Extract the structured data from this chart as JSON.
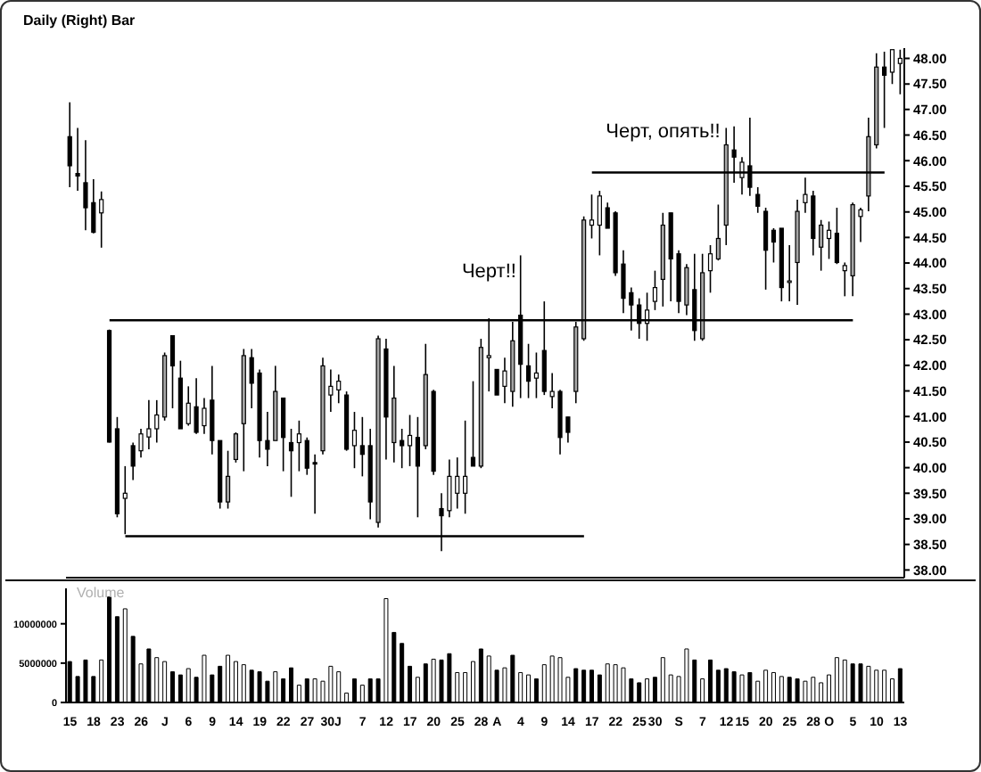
{
  "chart_data": [
    {
      "type": "candlestick",
      "title": "Daily (Right) Bar",
      "tick_labels": "y",
      "categories": [
        null,
        null,
        null,
        null,
        null,
        null,
        null,
        null,
        null,
        null,
        null,
        null,
        null,
        null,
        null,
        null,
        null,
        null,
        null,
        null,
        null,
        null,
        null,
        null,
        null,
        null,
        null,
        null,
        null,
        null,
        null,
        null,
        null,
        null,
        null,
        null,
        null,
        null,
        null,
        null,
        null,
        null,
        null,
        null,
        null,
        null,
        null,
        null,
        null,
        null,
        null,
        null,
        null,
        null,
        null,
        null,
        null,
        null,
        null,
        null,
        null,
        null,
        null,
        null,
        null,
        null,
        null,
        null,
        null,
        null,
        null,
        null,
        null,
        null,
        null,
        null,
        null,
        null,
        null,
        null,
        null,
        null,
        null,
        null,
        null,
        null,
        null,
        null,
        null,
        null,
        null,
        null,
        null,
        null,
        null,
        null,
        null,
        null,
        null,
        null,
        null,
        null,
        null,
        null,
        null,
        null
      ],
      "ohlc": [
        [
          46.47,
          47.14,
          45.48,
          45.9
        ],
        [
          45.75,
          46.64,
          45.41,
          45.7
        ],
        [
          45.57,
          46.4,
          44.64,
          45.08
        ],
        [
          45.18,
          45.64,
          44.58,
          44.6
        ],
        [
          44.98,
          45.4,
          44.3,
          45.24
        ],
        [
          42.68,
          42.7,
          40.49,
          40.5
        ],
        [
          40.76,
          40.99,
          39.03,
          39.1
        ],
        [
          39.4,
          40.03,
          38.7,
          39.5
        ],
        [
          40.43,
          40.49,
          39.76,
          40.03
        ],
        [
          40.33,
          40.76,
          40.2,
          40.66
        ],
        [
          40.6,
          41.32,
          40.36,
          40.76
        ],
        [
          40.76,
          41.32,
          40.49,
          41.03
        ],
        [
          40.99,
          42.25,
          40.92,
          42.19
        ],
        [
          42.58,
          42.58,
          41.16,
          41.99
        ],
        [
          41.75,
          42.09,
          40.76,
          40.76
        ],
        [
          40.86,
          41.59,
          40.82,
          41.26
        ],
        [
          41.19,
          41.75,
          40.66,
          40.69
        ],
        [
          40.82,
          41.36,
          40.66,
          41.16
        ],
        [
          41.32,
          41.99,
          40.26,
          40.53
        ],
        [
          40.53,
          40.53,
          39.2,
          39.33
        ],
        [
          39.33,
          40.33,
          39.2,
          39.83
        ],
        [
          40.16,
          40.69,
          40.1,
          40.66
        ],
        [
          40.86,
          42.32,
          39.93,
          42.19
        ],
        [
          42.15,
          42.32,
          41.16,
          41.65
        ],
        [
          41.85,
          41.92,
          40.2,
          40.53
        ],
        [
          40.53,
          41.09,
          40.03,
          40.36
        ],
        [
          40.53,
          41.99,
          40.53,
          41.49
        ],
        [
          41.36,
          41.36,
          39.93,
          40.59
        ],
        [
          40.49,
          40.76,
          39.43,
          40.33
        ],
        [
          40.49,
          40.92,
          39.93,
          40.66
        ],
        [
          40.53,
          40.59,
          39.86,
          39.99
        ],
        [
          40.1,
          40.26,
          39.1,
          40.07
        ],
        [
          40.33,
          42.15,
          40.26,
          41.99
        ],
        [
          41.42,
          41.92,
          41.09,
          41.59
        ],
        [
          41.52,
          41.82,
          41.26,
          41.69
        ],
        [
          41.42,
          41.49,
          40.33,
          40.36
        ],
        [
          40.43,
          41.09,
          39.99,
          40.73
        ],
        [
          40.43,
          40.99,
          39.83,
          40.26
        ],
        [
          40.43,
          40.76,
          38.99,
          39.33
        ],
        [
          38.93,
          42.58,
          38.83,
          42.52
        ],
        [
          42.32,
          42.52,
          40.16,
          40.99
        ],
        [
          40.49,
          41.99,
          40.1,
          41.36
        ],
        [
          40.53,
          40.76,
          39.99,
          40.43
        ],
        [
          40.43,
          41.03,
          40.03,
          40.63
        ],
        [
          40.59,
          40.99,
          39.03,
          40.03
        ],
        [
          40.43,
          42.42,
          40.36,
          41.82
        ],
        [
          41.49,
          41.52,
          39.86,
          39.93
        ],
        [
          39.2,
          39.5,
          38.37,
          39.06
        ],
        [
          39.16,
          40.16,
          39.03,
          39.83
        ],
        [
          39.5,
          40.2,
          39.2,
          39.83
        ],
        [
          39.5,
          40.92,
          39.1,
          39.83
        ],
        [
          40.2,
          41.69,
          40.03,
          40.03
        ],
        [
          40.03,
          42.52,
          39.99,
          42.35
        ],
        [
          42.15,
          42.92,
          41.49,
          42.19
        ],
        [
          41.92,
          41.92,
          41.42,
          41.42
        ],
        [
          41.59,
          42.15,
          41.26,
          41.89
        ],
        [
          41.49,
          42.85,
          41.19,
          42.48
        ],
        [
          42.98,
          44.15,
          41.36,
          42.02
        ],
        [
          41.99,
          42.42,
          41.36,
          41.69
        ],
        [
          41.75,
          42.25,
          41.36,
          41.85
        ],
        [
          42.29,
          43.25,
          41.42,
          41.49
        ],
        [
          41.39,
          41.85,
          41.16,
          41.49
        ],
        [
          41.49,
          41.52,
          40.26,
          40.59
        ],
        [
          40.99,
          40.99,
          40.49,
          40.69
        ],
        [
          41.49,
          42.85,
          41.26,
          42.75
        ],
        [
          42.52,
          44.91,
          42.48,
          44.84
        ],
        [
          44.74,
          45.34,
          44.48,
          44.84
        ],
        [
          44.74,
          45.41,
          44.15,
          45.31
        ],
        [
          45.08,
          45.18,
          44.68,
          44.68
        ],
        [
          44.98,
          45.01,
          43.75,
          43.81
        ],
        [
          43.98,
          44.25,
          43.02,
          43.31
        ],
        [
          43.42,
          43.52,
          42.68,
          43.18
        ],
        [
          43.18,
          43.31,
          42.52,
          42.82
        ],
        [
          42.82,
          43.42,
          42.48,
          43.08
        ],
        [
          43.25,
          43.85,
          43.08,
          43.52
        ],
        [
          43.68,
          44.98,
          43.15,
          44.74
        ],
        [
          44.98,
          44.98,
          43.25,
          44.08
        ],
        [
          44.18,
          44.25,
          43.02,
          43.25
        ],
        [
          43.18,
          43.98,
          42.98,
          43.91
        ],
        [
          43.48,
          44.18,
          42.48,
          42.68
        ],
        [
          42.52,
          44.18,
          42.48,
          43.81
        ],
        [
          43.85,
          44.35,
          43.42,
          44.18
        ],
        [
          44.08,
          45.14,
          44.05,
          44.48
        ],
        [
          44.74,
          46.64,
          44.35,
          46.31
        ],
        [
          46.21,
          46.67,
          45.57,
          46.07
        ],
        [
          45.67,
          46.07,
          45.34,
          45.97
        ],
        [
          45.9,
          46.84,
          45.31,
          45.48
        ],
        [
          45.34,
          45.48,
          44.98,
          45.11
        ],
        [
          45.01,
          45.08,
          43.48,
          44.25
        ],
        [
          44.64,
          44.68,
          44.01,
          44.41
        ],
        [
          44.68,
          44.68,
          43.25,
          43.52
        ],
        [
          43.62,
          44.35,
          43.25,
          43.65
        ],
        [
          44.01,
          45.24,
          43.18,
          45.01
        ],
        [
          45.18,
          45.67,
          44.98,
          45.34
        ],
        [
          45.31,
          45.41,
          44.15,
          44.48
        ],
        [
          44.31,
          44.84,
          43.85,
          44.74
        ],
        [
          44.48,
          44.81,
          44.08,
          44.64
        ],
        [
          44.58,
          45.08,
          43.98,
          44.01
        ],
        [
          43.85,
          44.01,
          43.35,
          43.95
        ],
        [
          43.75,
          45.18,
          43.35,
          45.14
        ],
        [
          44.91,
          45.08,
          44.41,
          45.04
        ],
        [
          45.31,
          46.84,
          45.01,
          46.47
        ],
        [
          46.31,
          48.1,
          46.24,
          47.83
        ],
        [
          47.83,
          48.13,
          46.64,
          47.67
        ],
        [
          47.73,
          48.17,
          47.5,
          48.17
        ],
        [
          47.9,
          48.17,
          47.3,
          48.0
        ]
      ],
      "colors": [
        "#000000",
        "#000000",
        "#000000",
        "#000000",
        "#ffffff",
        "#000000",
        "#000000",
        "#ffffff",
        "#000000",
        "#ffffff",
        "#ffffff",
        "#ffffff",
        "#a6a6a6",
        "#000000",
        "#000000",
        "#ffffff",
        "#000000",
        "#ffffff",
        "#000000",
        "#000000",
        "#a6a6a6",
        "#a6a6a6",
        "#a6a6a6",
        "#000000",
        "#000000",
        "#000000",
        "#a6a6a6",
        "#000000",
        "#000000",
        "#ffffff",
        "#000000",
        "#000000",
        "#a6a6a6",
        "#ffffff",
        "#ffffff",
        "#000000",
        "#ffffff",
        "#000000",
        "#000000",
        "#a6a6a6",
        "#000000",
        "#a6a6a6",
        "#000000",
        "#ffffff",
        "#000000",
        "#a6a6a6",
        "#000000",
        "#000000",
        "#ffffff",
        "#ffffff",
        "#ffffff",
        "#000000",
        "#a6a6a6",
        "#ffffff",
        "#000000",
        "#ffffff",
        "#a6a6a6",
        "#000000",
        "#000000",
        "#ffffff",
        "#000000",
        "#ffffff",
        "#000000",
        "#000000",
        "#a6a6a6",
        "#a6a6a6",
        "#ffffff",
        "#ffffff",
        "#000000",
        "#000000",
        "#000000",
        "#000000",
        "#000000",
        "#ffffff",
        "#ffffff",
        "#a6a6a6",
        "#000000",
        "#000000",
        "#a6a6a6",
        "#000000",
        "#a6a6a6",
        "#ffffff",
        "#a6a6a6",
        "#a6a6a6",
        "#000000",
        "#ffffff",
        "#000000",
        "#000000",
        "#000000",
        "#000000",
        "#000000",
        "#ffffff",
        "#a6a6a6",
        "#ffffff",
        "#000000",
        "#a6a6a6",
        "#ffffff",
        "#000000",
        "#ffffff",
        "#a6a6a6",
        "#ffffff",
        "#a6a6a6",
        "#a6a6a6",
        "#000000",
        "#ffffff",
        "#ffffff"
      ],
      "series": [
        {
          "type": "line",
          "color": "#000000",
          "values": [
            null,
            null,
            null,
            null,
            null,
            42.88,
            42.88,
            42.88,
            42.88,
            42.88,
            42.88,
            42.88,
            42.88,
            42.88,
            42.88,
            42.88,
            42.88,
            42.88,
            42.88,
            42.88,
            42.88,
            42.88,
            42.88,
            42.88,
            42.88,
            42.88,
            42.88,
            42.88,
            42.88,
            42.88,
            42.88,
            42.88,
            42.88,
            42.88,
            42.88,
            42.88,
            42.88,
            42.88,
            42.88,
            42.88,
            42.88,
            42.88,
            42.88,
            42.88,
            42.88,
            42.88,
            42.88,
            42.88,
            42.88,
            42.88,
            42.88,
            42.88,
            42.88,
            42.88,
            42.88,
            42.88,
            42.88,
            42.88,
            42.88,
            42.88,
            42.88,
            42.88,
            42.88,
            42.88,
            42.88,
            42.88,
            42.88,
            42.88,
            42.88,
            42.88,
            42.88,
            42.88,
            42.88,
            42.88,
            42.88,
            42.88,
            42.88,
            42.88,
            42.88,
            42.88,
            42.88,
            42.88,
            42.88,
            42.88,
            42.88,
            42.88,
            42.88,
            42.88,
            42.88,
            42.88,
            42.88,
            42.88,
            42.88,
            42.88,
            42.88,
            42.88,
            42.88,
            42.88,
            42.88,
            42.88,
            null,
            null,
            null,
            null,
            null,
            null
          ]
        },
        {
          "type": "line",
          "color": "#000000",
          "values": [
            null,
            null,
            null,
            null,
            null,
            null,
            null,
            null,
            null,
            null,
            null,
            null,
            null,
            null,
            null,
            null,
            null,
            null,
            null,
            null,
            null,
            null,
            null,
            null,
            null,
            null,
            null,
            null,
            null,
            null,
            null,
            null,
            null,
            null,
            null,
            null,
            null,
            null,
            null,
            null,
            null,
            null,
            null,
            null,
            null,
            null,
            null,
            null,
            null,
            null,
            null,
            null,
            null,
            null,
            null,
            null,
            null,
            null,
            null,
            null,
            null,
            null,
            null,
            null,
            null,
            null,
            45.77,
            45.77,
            45.77,
            45.77,
            45.77,
            45.77,
            45.77,
            45.77,
            45.77,
            45.77,
            45.77,
            45.77,
            45.77,
            45.77,
            45.77,
            45.77,
            45.77,
            45.77,
            45.77,
            45.77,
            45.77,
            45.77,
            45.77,
            45.77,
            45.77,
            45.77,
            45.77,
            45.77,
            45.77,
            45.77,
            45.77,
            45.77,
            45.77,
            45.77,
            45.77,
            45.77,
            45.77,
            45.77,
            null,
            null
          ]
        },
        {
          "type": "line",
          "color": "#000000",
          "values": [
            null,
            null,
            null,
            null,
            null,
            null,
            null,
            38.66,
            38.66,
            38.66,
            38.66,
            38.66,
            38.66,
            38.66,
            38.66,
            38.66,
            38.66,
            38.66,
            38.66,
            38.66,
            38.66,
            38.66,
            38.66,
            38.66,
            38.66,
            38.66,
            38.66,
            38.66,
            38.66,
            38.66,
            38.66,
            38.66,
            38.66,
            38.66,
            38.66,
            38.66,
            38.66,
            38.66,
            38.66,
            38.66,
            38.66,
            38.66,
            38.66,
            38.66,
            38.66,
            38.66,
            38.66,
            38.66,
            38.66,
            38.66,
            38.66,
            38.66,
            38.66,
            38.66,
            38.66,
            38.66,
            38.66,
            38.66,
            38.66,
            38.66,
            38.66,
            38.66,
            38.66,
            38.66,
            38.66,
            38.66,
            null,
            null,
            null,
            null,
            null,
            null,
            null,
            null,
            null,
            null,
            null,
            null,
            null,
            null,
            null,
            null,
            null,
            null,
            null,
            null,
            null,
            null,
            null,
            null,
            null,
            null,
            null,
            null,
            null,
            null,
            null,
            null,
            null,
            null,
            null,
            null,
            null,
            null,
            null,
            null
          ]
        }
      ],
      "ylim": [
        37.85,
        48.2
      ],
      "yticks": [
        {
          "value": 38,
          "label": "38.00"
        },
        {
          "value": 38.5,
          "label": "38.50"
        },
        {
          "value": 39,
          "label": "39.00"
        },
        {
          "value": 39.5,
          "label": "39.50"
        },
        {
          "value": 40,
          "label": "40.00"
        },
        {
          "value": 40.5,
          "label": "40.50"
        },
        {
          "value": 41,
          "label": "41.00"
        },
        {
          "value": 41.5,
          "label": "41.50"
        },
        {
          "value": 42,
          "label": "42.00"
        },
        {
          "value": 42.5,
          "label": "42.50"
        },
        {
          "value": 43,
          "label": "43.00"
        },
        {
          "value": 43.5,
          "label": "43.50"
        },
        {
          "value": 44,
          "label": "44.00"
        },
        {
          "value": 44.5,
          "label": "44.50"
        },
        {
          "value": 45,
          "label": "45.00"
        },
        {
          "value": 45.5,
          "label": "45.50"
        },
        {
          "value": 46,
          "label": "46.00"
        },
        {
          "value": 46.5,
          "label": "46.50"
        },
        {
          "value": 47,
          "label": "47.00"
        },
        {
          "value": 47.5,
          "label": "47.50"
        },
        {
          "value": 48,
          "label": "48.00"
        }
      ],
      "annotations": [
        "Черт!!",
        "Черт, опять!!"
      ]
    },
    {
      "type": "bar",
      "title": "Volume",
      "categories": [
        "15",
        null,
        null,
        "18",
        null,
        null,
        "23",
        null,
        null,
        "26",
        null,
        null,
        "J",
        null,
        null,
        "6",
        null,
        null,
        "9",
        null,
        null,
        "14",
        null,
        null,
        "19",
        null,
        null,
        "22",
        null,
        null,
        "27",
        null,
        null,
        "30J",
        null,
        null,
        null,
        "7",
        null,
        null,
        "12",
        null,
        null,
        "17",
        null,
        null,
        "20",
        null,
        null,
        "25",
        null,
        null,
        "28",
        null,
        "A",
        null,
        null,
        "4",
        null,
        null,
        "9",
        null,
        null,
        "14",
        null,
        null,
        "17",
        null,
        null,
        "22",
        null,
        null,
        "25",
        null,
        "30",
        null,
        null,
        "S",
        null,
        null,
        "7",
        null,
        null,
        "12",
        null,
        "15",
        null,
        null,
        "20",
        null,
        null,
        "25",
        null,
        null,
        "28",
        null,
        "O",
        null,
        null,
        "5",
        null,
        null,
        "10",
        null,
        null,
        "13"
      ],
      "values": [
        5200000,
        3300000,
        5400000,
        3300000,
        5400000,
        13400000,
        10900000,
        11900000,
        8400000,
        4900000,
        6800000,
        5700000,
        5200000,
        3900000,
        3500000,
        4300000,
        3200000,
        6000000,
        3500000,
        4600000,
        6000000,
        5200000,
        4800000,
        4100000,
        3900000,
        2700000,
        3900000,
        3000000,
        4400000,
        2200000,
        3000000,
        3000000,
        2700000,
        4600000,
        3900000,
        1200000,
        3000000,
        2200000,
        3000000,
        3000000,
        13200000,
        8900000,
        7500000,
        4600000,
        3200000,
        4900000,
        5500000,
        5400000,
        6200000,
        3800000,
        3800000,
        5200000,
        6800000,
        5900000,
        4100000,
        4400000,
        6000000,
        3800000,
        3500000,
        3000000,
        4800000,
        5900000,
        5700000,
        3200000,
        4300000,
        4100000,
        4100000,
        3500000,
        4900000,
        4800000,
        4400000,
        3000000,
        2500000,
        3000000,
        3200000,
        5700000,
        3500000,
        3300000,
        6800000,
        5400000,
        3000000,
        5400000,
        4100000,
        4300000,
        3900000,
        3500000,
        3800000,
        2700000,
        4100000,
        3800000,
        3300000,
        3200000,
        3000000,
        2700000,
        3200000,
        2500000,
        3500000,
        5700000,
        5400000,
        4900000,
        4900000,
        4600000,
        4100000,
        4100000,
        3000000,
        4300000
      ],
      "colors": [
        "#000000",
        "#000000",
        "#000000",
        "#000000",
        "#ffffff",
        "#000000",
        "#000000",
        "#ffffff",
        "#000000",
        "#ffffff",
        "#000000",
        "#ffffff",
        "#ffffff",
        "#000000",
        "#000000",
        "#ffffff",
        "#000000",
        "#ffffff",
        "#000000",
        "#000000",
        "#ffffff",
        "#ffffff",
        "#ffffff",
        "#000000",
        "#000000",
        "#000000",
        "#ffffff",
        "#000000",
        "#000000",
        "#ffffff",
        "#000000",
        "#ffffff",
        "#ffffff",
        "#ffffff",
        "#ffffff",
        "#ffffff",
        "#000000",
        "#ffffff",
        "#000000",
        "#000000",
        "#ffffff",
        "#000000",
        "#000000",
        "#000000",
        "#ffffff",
        "#000000",
        "#ffffff",
        "#000000",
        "#000000",
        "#ffffff",
        "#ffffff",
        "#ffffff",
        "#000000",
        "#ffffff",
        "#000000",
        "#ffffff",
        "#000000",
        "#ffffff",
        "#ffffff",
        "#000000",
        "#ffffff",
        "#ffffff",
        "#ffffff",
        "#ffffff",
        "#000000",
        "#000000",
        "#000000",
        "#000000",
        "#ffffff",
        "#ffffff",
        "#ffffff",
        "#000000",
        "#000000",
        "#ffffff",
        "#000000",
        "#ffffff",
        "#ffffff",
        "#ffffff",
        "#ffffff",
        "#000000",
        "#ffffff",
        "#000000",
        "#000000",
        "#000000",
        "#000000",
        "#ffffff",
        "#000000",
        "#ffffff",
        "#ffffff",
        "#ffffff",
        "#ffffff",
        "#000000",
        "#000000",
        "#ffffff",
        "#ffffff",
        "#ffffff",
        "#ffffff",
        "#ffffff",
        "#ffffff",
        "#000000",
        "#000000",
        "#ffffff",
        "#ffffff",
        "#ffffff",
        "#ffffff",
        "#000000"
      ],
      "ylim": [
        0,
        14500000
      ],
      "yticks": [
        0,
        5000000,
        10000000
      ]
    }
  ]
}
